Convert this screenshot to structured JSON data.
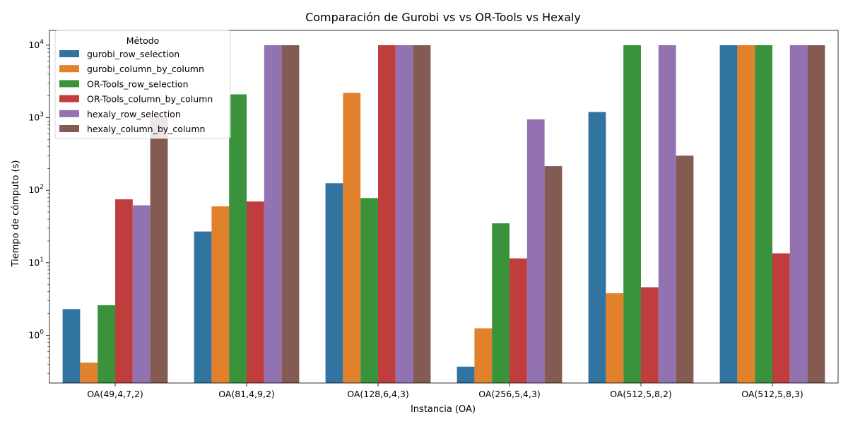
{
  "chart_data": {
    "type": "bar",
    "title": "Comparación de Gurobi vs vs OR-Tools vs Hexaly",
    "xlabel": "Instancia (OA)",
    "ylabel": "Tiempo de cómputo (s)",
    "yscale": "log",
    "ylim": [
      0.22,
      16000
    ],
    "yticks": [
      {
        "value": 1,
        "label": "10⁰",
        "base": "10",
        "exp": "0"
      },
      {
        "value": 10,
        "label": "10¹",
        "base": "10",
        "exp": "1"
      },
      {
        "value": 100,
        "label": "10²",
        "base": "10",
        "exp": "2"
      },
      {
        "value": 1000,
        "label": "10³",
        "base": "10",
        "exp": "3"
      },
      {
        "value": 10000,
        "label": "10⁴",
        "base": "10",
        "exp": "4"
      }
    ],
    "categories": [
      "OA(49,4,7,2)",
      "OA(81,4,9,2)",
      "OA(128,6,4,3)",
      "OA(256,5,4,3)",
      "OA(512,5,8,2)",
      "OA(512,5,8,3)"
    ],
    "legend": {
      "title": "Método",
      "position": "upper-left"
    },
    "series": [
      {
        "name": "gurobi_row_selection",
        "color": "#3274a1",
        "values": [
          2.3,
          27,
          125,
          0.37,
          1200,
          10000
        ]
      },
      {
        "name": "gurobi_column_by_column",
        "color": "#e1812c",
        "values": [
          0.42,
          60,
          2200,
          1.25,
          3.8,
          10000
        ]
      },
      {
        "name": "OR-Tools_row_selection",
        "color": "#3a923a",
        "values": [
          2.6,
          2100,
          78,
          35,
          10000,
          10000
        ]
      },
      {
        "name": "OR-Tools_column_by_column",
        "color": "#c03d3e",
        "values": [
          75,
          70,
          10000,
          11.5,
          4.6,
          13.5
        ]
      },
      {
        "name": "hexaly_row_selection",
        "color": "#9372b2",
        "values": [
          62,
          10000,
          10000,
          950,
          10000,
          10000
        ]
      },
      {
        "name": "hexaly_column_by_column",
        "color": "#845b53",
        "values": [
          1000,
          10000,
          10000,
          215,
          300,
          10000
        ]
      }
    ]
  }
}
